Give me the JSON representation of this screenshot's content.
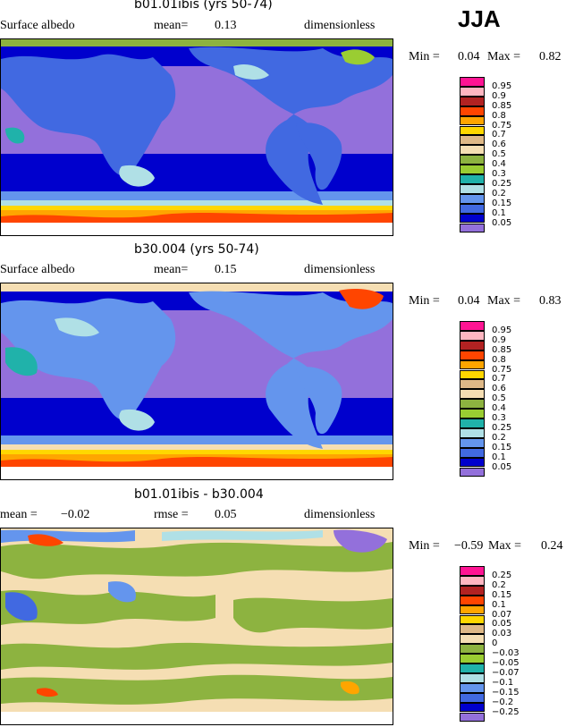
{
  "season": "JJA",
  "panels": [
    {
      "title": "b01.01ibis (yrs 50-74)",
      "left_label": "Surface albedo",
      "mean_label": "mean=",
      "mean_value": "0.13",
      "units": "dimensionless",
      "min_label": "Min =",
      "min_value": "0.04",
      "max_label": "Max =",
      "max_value": "0.82",
      "legend": [
        "0.95",
        "0.9",
        "0.85",
        "0.8",
        "0.75",
        "0.7",
        "0.6",
        "0.5",
        "0.4",
        "0.3",
        "0.25",
        "0.2",
        "0.15",
        "0.1",
        "0.05"
      ]
    },
    {
      "title": "b30.004 (yrs 50-74)",
      "left_label": "Surface albedo",
      "mean_label": "mean=",
      "mean_value": "0.15",
      "units": "dimensionless",
      "min_label": "Min =",
      "min_value": "0.04",
      "max_label": "Max =",
      "max_value": "0.83",
      "legend": [
        "0.95",
        "0.9",
        "0.85",
        "0.8",
        "0.75",
        "0.7",
        "0.6",
        "0.5",
        "0.4",
        "0.3",
        "0.25",
        "0.2",
        "0.15",
        "0.1",
        "0.05"
      ]
    },
    {
      "title": "b01.01ibis - b30.004",
      "left_label": "mean =",
      "left_value": "−0.02",
      "mean_label": "rmse =",
      "mean_value": "0.05",
      "units": "dimensionless",
      "min_label": "Min =",
      "min_value": "−0.59",
      "max_label": "Max =",
      "max_value": "0.24",
      "legend": [
        "0.25",
        "0.2",
        "0.15",
        "0.1",
        "0.07",
        "0.05",
        "0.03",
        "0",
        "−0.03",
        "−0.05",
        "−0.07",
        "−0.1",
        "−0.15",
        "−0.2",
        "−0.25"
      ]
    }
  ],
  "colors": {
    "scale": [
      "#ff1493",
      "#ffb6c1",
      "#b22222",
      "#ff4500",
      "#ffa500",
      "#ffd700",
      "#deb887",
      "#f5deb3",
      "#8db340",
      "#9acd32",
      "#20b2aa",
      "#b0e0e6",
      "#6495ed",
      "#4169e1",
      "#0000cd",
      "#9370db"
    ],
    "ocean": "#9370db",
    "ocean_band": "#0000cd",
    "land": "#4169e1",
    "diff_land": "#8db340",
    "diff_base": "#f5deb3"
  }
}
